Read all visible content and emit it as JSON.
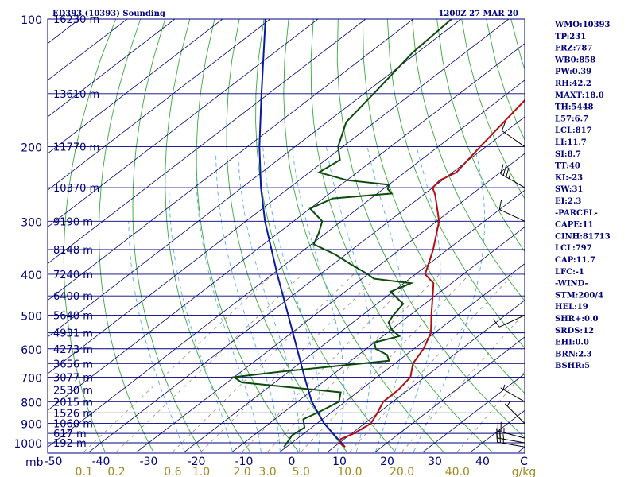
{
  "title": "ED393 (10393) Sounding",
  "datetime": "1200Z 27 MAR 20",
  "indices": [
    "WMO:10393",
    "TP:231",
    "FRZ:787",
    "WB0:858",
    "PW:0.39",
    "RH:42.2",
    "MAXT:18.0",
    "TH:5448",
    "L57:6.7",
    "LCL:817",
    "LI:11.7",
    "SI:8.7",
    "TT:40",
    "KI:-23",
    "SW:31",
    "EI:2.3",
    "-PARCEL-",
    "CAPE:11",
    "CINH:81713",
    "LCL:797",
    "CAP:11.7",
    "LFC:-1",
    "-WIND-",
    "STM:200/4",
    "HEL:19",
    "SHR+:0.0",
    "SRDS:12",
    "EHI:0.0",
    "BRN:2.3",
    "BSHR:5"
  ],
  "colors": {
    "frame": "#00007a",
    "isobar": "#00007a",
    "isotherm": "#00007a",
    "dry_adiabat": "#3aa83a",
    "moist_adiabat": "#5aaee0",
    "mixing_ratio": "#9a8a70",
    "temperature": "#b01010",
    "dewpoint": "#0c4a0c",
    "parcel": "#0a1aa0",
    "wind": "#000000"
  },
  "chart_data": {
    "type": "skew-t",
    "pressure_ticks": [
      "100",
      "200",
      "300",
      "400",
      "500",
      "600",
      "700",
      "800",
      "900",
      "1000"
    ],
    "pressure_unit": "mb",
    "temperature_ticks": [
      "-50",
      "-40",
      "-30",
      "-20",
      "-10",
      "0",
      "10",
      "20",
      "30",
      "40",
      "C"
    ],
    "mixing_ratio_ticks": [
      "0.1",
      "0.2",
      "0.6",
      "1.0",
      "2.0",
      "3.0",
      "5.0",
      "10.0",
      "20.0",
      "40.0",
      "g/kg"
    ],
    "height_levels": [
      {
        "p": 100,
        "label": "16230 m"
      },
      {
        "p": 150,
        "label": "13610 m"
      },
      {
        "p": 200,
        "label": "11770 m"
      },
      {
        "p": 250,
        "label": "10370 m"
      },
      {
        "p": 300,
        "label": "9190 m"
      },
      {
        "p": 350,
        "label": "8148 m"
      },
      {
        "p": 400,
        "label": "7240 m"
      },
      {
        "p": 450,
        "label": "6400 m"
      },
      {
        "p": 500,
        "label": "5640 m"
      },
      {
        "p": 550,
        "label": "4931 m"
      },
      {
        "p": 600,
        "label": "4273 m"
      },
      {
        "p": 650,
        "label": "3656 m"
      },
      {
        "p": 700,
        "label": "3077 m"
      },
      {
        "p": 750,
        "label": "2530 m"
      },
      {
        "p": 800,
        "label": "2015 m"
      },
      {
        "p": 850,
        "label": "1526 m"
      },
      {
        "p": 900,
        "label": "1060 m"
      },
      {
        "p": 950,
        "label": "617 m"
      },
      {
        "p": 1000,
        "label": "192 m"
      }
    ],
    "temperature_profile": [
      [
        1023,
        12.3
      ],
      [
        1000,
        10.0
      ],
      [
        980,
        9.2
      ],
      [
        950,
        10.5
      ],
      [
        900,
        11.3
      ],
      [
        850,
        9.8
      ],
      [
        800,
        8.0
      ],
      [
        750,
        7.9
      ],
      [
        700,
        7.0
      ],
      [
        650,
        3.8
      ],
      [
        600,
        2.0
      ],
      [
        550,
        -0.8
      ],
      [
        500,
        -5.5
      ],
      [
        450,
        -10.5
      ],
      [
        420,
        -13.8
      ],
      [
        400,
        -18.0
      ],
      [
        350,
        -23.0
      ],
      [
        300,
        -29.5
      ],
      [
        260,
        -37.5
      ],
      [
        250,
        -40.0
      ],
      [
        240,
        -40.5
      ],
      [
        230,
        -39.2
      ],
      [
        200,
        -41.2
      ],
      [
        150,
        -45.0
      ],
      [
        100,
        -50.5
      ]
    ],
    "dewpoint_profile": [
      [
        1023,
        -0.5
      ],
      [
        1000,
        -1.0
      ],
      [
        960,
        -2.0
      ],
      [
        920,
        -1.5
      ],
      [
        880,
        -4.0
      ],
      [
        840,
        -2.5
      ],
      [
        800,
        -1.3
      ],
      [
        760,
        -3.5
      ],
      [
        720,
        -27.0
      ],
      [
        700,
        -30.0
      ],
      [
        680,
        -22.0
      ],
      [
        660,
        -12.0
      ],
      [
        640,
        -2.0
      ],
      [
        620,
        -4.0
      ],
      [
        600,
        -8.0
      ],
      [
        580,
        -10.0
      ],
      [
        560,
        -6.5
      ],
      [
        540,
        -10.0
      ],
      [
        520,
        -12.5
      ],
      [
        500,
        -13.5
      ],
      [
        470,
        -14.5
      ],
      [
        440,
        -20.5
      ],
      [
        420,
        -18.5
      ],
      [
        410,
        -27.5
      ],
      [
        400,
        -30.0
      ],
      [
        380,
        -36.0
      ],
      [
        360,
        -42.0
      ],
      [
        340,
        -49.5
      ],
      [
        320,
        -51.5
      ],
      [
        300,
        -54.0
      ],
      [
        280,
        -60.0
      ],
      [
        265,
        -58.0
      ],
      [
        258,
        -47.0
      ],
      [
        252,
        -49.0
      ],
      [
        246,
        -50.0
      ],
      [
        240,
        -60.0
      ],
      [
        230,
        -68.0
      ],
      [
        215,
        -67.0
      ],
      [
        200,
        -71.0
      ],
      [
        175,
        -76.0
      ],
      [
        150,
        -78.0
      ],
      [
        120,
        -81.0
      ],
      [
        100,
        -82.0
      ]
    ],
    "parcel_profile": [
      [
        1023,
        12.3
      ],
      [
        900,
        1.5
      ],
      [
        800,
        -7.0
      ],
      [
        700,
        -15.2
      ],
      [
        600,
        -24.5
      ],
      [
        500,
        -35.5
      ],
      [
        400,
        -49.0
      ],
      [
        300,
        -66.0
      ],
      [
        250,
        -76.0
      ],
      [
        200,
        -87.5
      ],
      [
        150,
        -101.5
      ],
      [
        100,
        -121.0
      ]
    ],
    "wind_barbs": [
      {
        "p": 1023,
        "dir": 280,
        "spd": 25
      },
      {
        "p": 1000,
        "dir": 280,
        "spd": 25
      },
      {
        "p": 975,
        "dir": 285,
        "spd": 25
      },
      {
        "p": 900,
        "dir": 315,
        "spd": 5
      },
      {
        "p": 800,
        "dir": 300,
        "spd": 5
      },
      {
        "p": 500,
        "dir": 245,
        "spd": 10
      },
      {
        "p": 300,
        "dir": 295,
        "spd": 10
      },
      {
        "p": 250,
        "dir": 300,
        "spd": 35
      },
      {
        "p": 200,
        "dir": 305,
        "spd": 10
      }
    ],
    "xlim": [
      -50,
      50
    ],
    "ylim": [
      1050,
      100
    ]
  }
}
